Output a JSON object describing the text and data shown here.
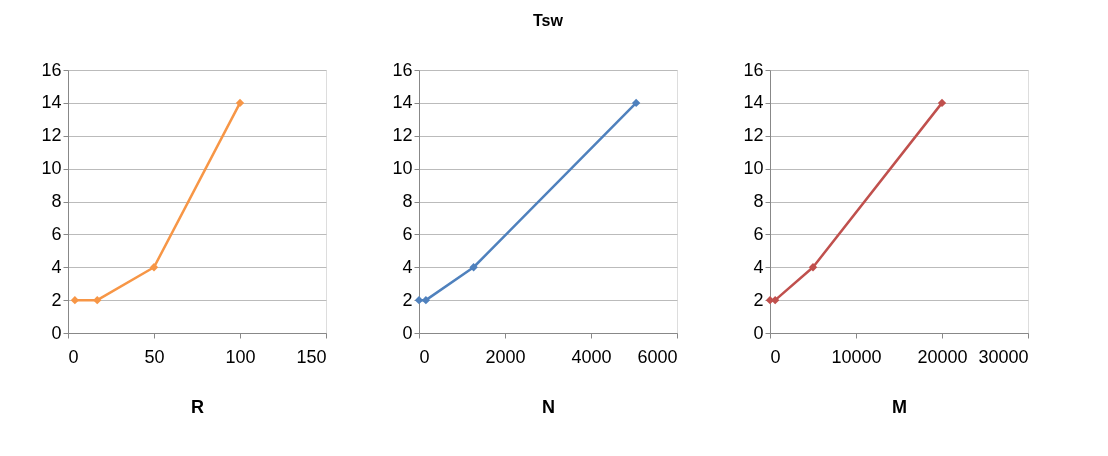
{
  "chart_data": [
    {
      "type": "line",
      "xlabel": "R",
      "x": [
        4,
        17,
        50,
        100
      ],
      "series": [
        {
          "color": "#f79646",
          "values": [
            2,
            2,
            4,
            14
          ]
        }
      ],
      "xlim": [
        0,
        150
      ],
      "xticks": [
        0,
        50,
        100,
        150
      ],
      "ylim": [
        0,
        16
      ],
      "yticks": [
        0,
        2,
        4,
        6,
        8,
        10,
        12,
        14,
        16
      ],
      "grid": "y",
      "marker": "diamond",
      "line_style": "solid"
    },
    {
      "type": "line",
      "title": "Tsw",
      "xlabel": "N",
      "x": [
        0,
        160,
        1270,
        5050
      ],
      "series": [
        {
          "color": "#4f81bd",
          "values": [
            2,
            2,
            4,
            14
          ]
        }
      ],
      "xlim": [
        0,
        6000
      ],
      "xticks": [
        0,
        2000,
        4000,
        6000
      ],
      "ylim": [
        0,
        16
      ],
      "yticks": [
        0,
        2,
        4,
        6,
        8,
        10,
        12,
        14,
        16
      ],
      "grid": "y",
      "marker": "diamond",
      "line_style": "solid"
    },
    {
      "type": "line",
      "xlabel": "M",
      "x": [
        0,
        600,
        5000,
        20000
      ],
      "series": [
        {
          "color": "#c0504d",
          "values": [
            2,
            2,
            4,
            14
          ]
        }
      ],
      "xlim": [
        0,
        30000
      ],
      "xticks": [
        0,
        10000,
        20000,
        30000
      ],
      "ylim": [
        0,
        16
      ],
      "yticks": [
        0,
        2,
        4,
        6,
        8,
        10,
        12,
        14,
        16
      ],
      "grid": "y",
      "marker": "diamond",
      "line_style": "solid"
    }
  ]
}
